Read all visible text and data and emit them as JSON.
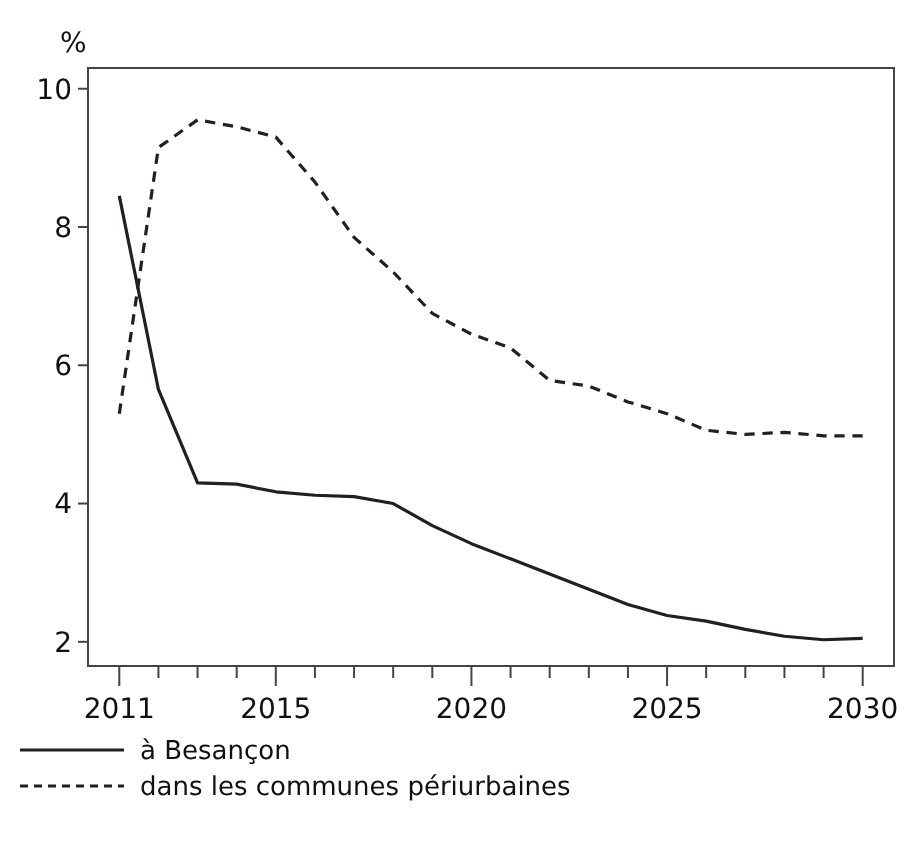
{
  "chart_data": {
    "type": "line",
    "ylabel": "%",
    "x": [
      2011,
      2012,
      2013,
      2014,
      2015,
      2016,
      2017,
      2018,
      2019,
      2020,
      2021,
      2022,
      2023,
      2024,
      2025,
      2026,
      2027,
      2028,
      2029,
      2030
    ],
    "xlim": [
      2010.2,
      2030.8
    ],
    "ylim": [
      1.65,
      10.3
    ],
    "xticks": [
      2011,
      {
        "value": 2012,
        "label": null
      },
      {
        "value": 2013,
        "label": null
      },
      {
        "value": 2014,
        "label": null
      },
      2015,
      {
        "value": 2016,
        "label": null
      },
      {
        "value": 2017,
        "label": null
      },
      {
        "value": 2018,
        "label": null
      },
      {
        "value": 2019,
        "label": null
      },
      2020,
      {
        "value": 2021,
        "label": null
      },
      {
        "value": 2022,
        "label": null
      },
      {
        "value": 2023,
        "label": null
      },
      {
        "value": 2024,
        "label": null
      },
      2025,
      {
        "value": 2026,
        "label": null
      },
      {
        "value": 2027,
        "label": null
      },
      {
        "value": 2028,
        "label": null
      },
      {
        "value": 2029,
        "label": null
      },
      2030
    ],
    "yticks": [
      2,
      4,
      6,
      8,
      10
    ],
    "legend": "bottom",
    "grid": false,
    "series": [
      {
        "name": "à Besançon",
        "color": "#231f20",
        "line_style": "solid",
        "values": [
          8.45,
          5.65,
          4.3,
          4.28,
          4.17,
          4.12,
          4.1,
          4.0,
          3.68,
          3.42,
          3.2,
          2.98,
          2.76,
          2.54,
          2.38,
          2.3,
          2.18,
          2.08,
          2.03,
          2.05
        ]
      },
      {
        "name": "dans les communes périurbaines",
        "color": "#231f20",
        "line_style": "dashed",
        "values": [
          5.3,
          9.15,
          9.55,
          9.45,
          9.3,
          8.65,
          7.85,
          7.35,
          6.75,
          6.45,
          6.25,
          5.78,
          5.7,
          5.47,
          5.3,
          5.06,
          5.0,
          5.03,
          4.98,
          4.98
        ]
      }
    ]
  }
}
